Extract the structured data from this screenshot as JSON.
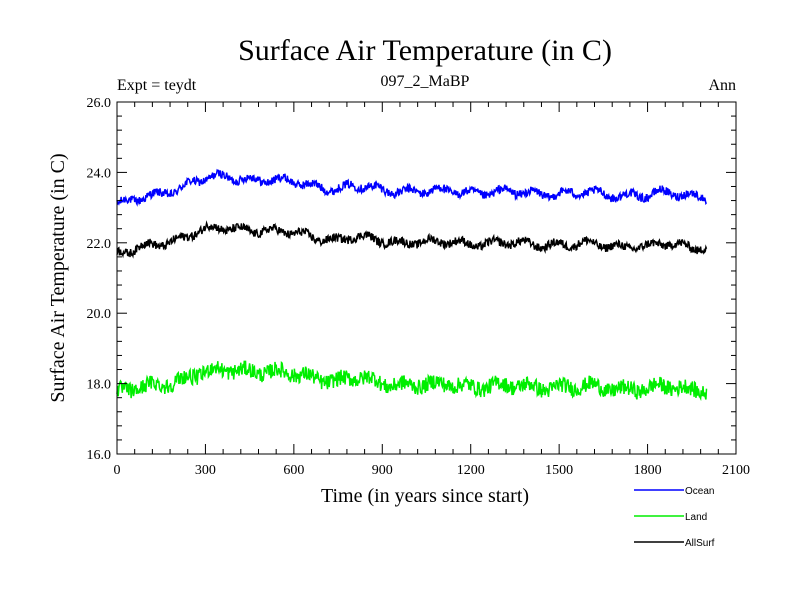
{
  "chart_data": {
    "type": "line",
    "title": "Surface Air Temperature (in C)",
    "subtitle": "097_2_MaBP",
    "left_label": "Expt = teydt",
    "right_label": "Ann",
    "xlabel": "Time (in years since start)",
    "ylabel": "Surface Air Temperature (in C)",
    "xlim": [
      0,
      2100
    ],
    "ylim": [
      16.0,
      26.0
    ],
    "xticks": [
      "0",
      "300",
      "600",
      "900",
      "1200",
      "1500",
      "1800",
      "2100"
    ],
    "yticks": [
      "16.0",
      "18.0",
      "20.0",
      "22.0",
      "24.0",
      "26.0"
    ],
    "x": [
      0,
      50,
      100,
      150,
      200,
      250,
      300,
      350,
      400,
      450,
      500,
      550,
      600,
      650,
      700,
      750,
      800,
      850,
      900,
      950,
      1000,
      1050,
      1100,
      1150,
      1200,
      1250,
      1300,
      1350,
      1400,
      1450,
      1500,
      1550,
      1600,
      1650,
      1700,
      1750,
      1800,
      1850,
      1900,
      1950,
      2000
    ],
    "series": [
      {
        "name": "Ocean",
        "color": "#0000ff",
        "values": [
          23.1,
          23.15,
          23.3,
          23.4,
          23.55,
          23.7,
          23.8,
          23.85,
          23.85,
          23.85,
          23.8,
          23.75,
          23.7,
          23.65,
          23.6,
          23.55,
          23.6,
          23.55,
          23.5,
          23.5,
          23.5,
          23.45,
          23.45,
          23.45,
          23.45,
          23.45,
          23.45,
          23.4,
          23.4,
          23.4,
          23.45,
          23.4,
          23.4,
          23.35,
          23.35,
          23.4,
          23.35,
          23.4,
          23.35,
          23.35,
          23.35
        ]
      },
      {
        "name": "Land",
        "color": "#00ee00",
        "values": [
          17.75,
          17.8,
          17.9,
          18.0,
          18.1,
          18.2,
          18.3,
          18.35,
          18.4,
          18.4,
          18.35,
          18.3,
          18.25,
          18.2,
          18.15,
          18.1,
          18.15,
          18.1,
          18.0,
          18.0,
          18.0,
          17.95,
          17.95,
          17.95,
          17.95,
          17.95,
          17.95,
          17.9,
          17.9,
          17.9,
          17.95,
          17.9,
          17.9,
          17.85,
          17.85,
          17.9,
          17.85,
          17.9,
          17.85,
          17.85,
          17.85
        ]
      },
      {
        "name": "AllSurf",
        "color": "#000000",
        "values": [
          21.7,
          21.75,
          21.9,
          22.0,
          22.1,
          22.25,
          22.35,
          22.4,
          22.4,
          22.4,
          22.35,
          22.3,
          22.25,
          22.2,
          22.15,
          22.1,
          22.15,
          22.1,
          22.05,
          22.05,
          22.05,
          22.0,
          22.0,
          22.0,
          22.0,
          22.0,
          22.0,
          21.95,
          21.95,
          21.95,
          22.0,
          21.95,
          21.95,
          21.9,
          21.9,
          21.95,
          21.9,
          21.95,
          21.9,
          21.9,
          21.9
        ]
      }
    ],
    "legend": [
      "Ocean",
      "Land",
      "AllSurf"
    ],
    "legend_position": "bottom-right",
    "grid": false
  }
}
